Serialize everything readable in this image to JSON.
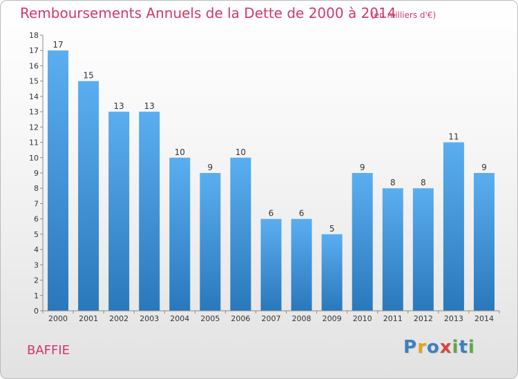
{
  "title": "Remboursements Annuels de la Dette de 2000 à 2014",
  "subtitle": "(en milliers d'€)",
  "commune": "BAFFIE",
  "logo": {
    "text": "Proxiti",
    "letters": [
      "P",
      "r",
      "o",
      "x",
      "i",
      "t",
      "i"
    ],
    "colors": [
      "#3d80c0",
      "#e2a419",
      "#3d80c0",
      "#d64545",
      "#62a64a",
      "#3d80c0",
      "#62a64a"
    ]
  },
  "chart_data": {
    "type": "bar",
    "categories": [
      "2000",
      "2001",
      "2002",
      "2003",
      "2004",
      "2005",
      "2006",
      "2007",
      "2008",
      "2009",
      "2010",
      "2011",
      "2012",
      "2013",
      "2014"
    ],
    "values": [
      17,
      15,
      13,
      13,
      10,
      9,
      10,
      6,
      6,
      5,
      9,
      8,
      8,
      11,
      9
    ],
    "title": "Remboursements Annuels de la Dette de 2000 à 2014",
    "subtitle": "(en milliers d'€)",
    "xlabel": "",
    "ylabel": "",
    "ylim": [
      0,
      18
    ],
    "yticks": [
      0,
      1,
      2,
      3,
      4,
      5,
      6,
      7,
      8,
      9,
      10,
      11,
      12,
      13,
      14,
      15,
      16,
      17,
      18
    ],
    "grid": false,
    "bar_color": "#3c93d9"
  }
}
